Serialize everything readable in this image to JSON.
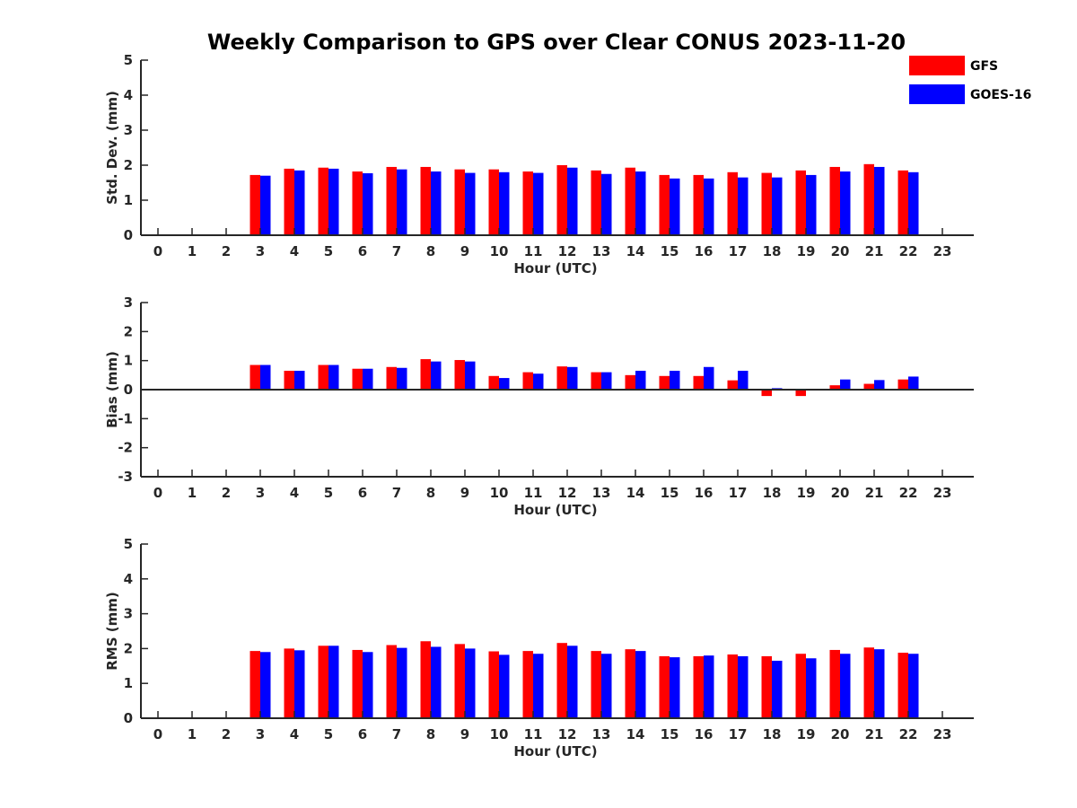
{
  "chart_data": {
    "type": "bar",
    "title": "Weekly Comparison to GPS over Clear CONUS 2023-11-20",
    "legend": {
      "placement": "top-right",
      "entries": [
        {
          "name": "GFS",
          "color": "#ff0000"
        },
        {
          "name": "GOES-16",
          "color": "#0000ff"
        }
      ]
    },
    "categories": [
      "0",
      "1",
      "2",
      "3",
      "4",
      "5",
      "6",
      "7",
      "8",
      "9",
      "10",
      "11",
      "12",
      "13",
      "14",
      "15",
      "16",
      "17",
      "18",
      "19",
      "20",
      "21",
      "22",
      "23"
    ],
    "subplots": [
      {
        "id": "stddev",
        "xlabel": "Hour (UTC)",
        "ylabel": "Std. Dev. (mm)",
        "ylim": [
          0,
          5
        ],
        "yticks": [
          "0",
          "1",
          "2",
          "3",
          "4",
          "5"
        ],
        "series": [
          {
            "name": "GFS",
            "color": "#ff0000",
            "values": [
              null,
              null,
              null,
              1.72,
              1.9,
              1.93,
              1.82,
              1.95,
              1.95,
              1.88,
              1.88,
              1.82,
              2.0,
              1.85,
              1.93,
              1.72,
              1.72,
              1.8,
              1.78,
              1.85,
              1.95,
              2.03,
              1.85,
              null
            ]
          },
          {
            "name": "GOES-16",
            "color": "#0000ff",
            "values": [
              null,
              null,
              null,
              1.7,
              1.85,
              1.9,
              1.77,
              1.88,
              1.82,
              1.78,
              1.8,
              1.78,
              1.93,
              1.75,
              1.82,
              1.62,
              1.62,
              1.65,
              1.65,
              1.72,
              1.82,
              1.95,
              1.8,
              null
            ]
          }
        ]
      },
      {
        "id": "bias",
        "xlabel": "Hour (UTC)",
        "ylabel": "Bias (mm)",
        "ylim": [
          -3,
          3
        ],
        "yticks": [
          "-3",
          "-2",
          "-1",
          "0",
          "1",
          "2",
          "3"
        ],
        "series": [
          {
            "name": "GFS",
            "color": "#ff0000",
            "values": [
              null,
              null,
              null,
              0.85,
              0.65,
              0.85,
              0.72,
              0.78,
              1.05,
              1.02,
              0.47,
              0.6,
              0.8,
              0.6,
              0.5,
              0.47,
              0.47,
              0.32,
              -0.22,
              -0.22,
              0.15,
              0.2,
              0.35,
              null
            ]
          },
          {
            "name": "GOES-16",
            "color": "#0000ff",
            "values": [
              null,
              null,
              null,
              0.85,
              0.65,
              0.85,
              0.72,
              0.75,
              0.97,
              0.97,
              0.4,
              0.55,
              0.78,
              0.6,
              0.65,
              0.65,
              0.78,
              0.65,
              0.05,
              null,
              0.35,
              0.33,
              0.45,
              null
            ]
          }
        ]
      },
      {
        "id": "rms",
        "xlabel": "Hour (UTC)",
        "ylabel": "RMS (mm)",
        "ylim": [
          0,
          5
        ],
        "yticks": [
          "0",
          "1",
          "2",
          "3",
          "4",
          "5"
        ],
        "series": [
          {
            "name": "GFS",
            "color": "#ff0000",
            "values": [
              null,
              null,
              null,
              1.93,
              2.0,
              2.08,
              1.96,
              2.1,
              2.21,
              2.13,
              1.92,
              1.93,
              2.16,
              1.93,
              1.98,
              1.78,
              1.78,
              1.83,
              1.78,
              1.85,
              1.96,
              2.03,
              1.88,
              null
            ]
          },
          {
            "name": "GOES-16",
            "color": "#0000ff",
            "values": [
              null,
              null,
              null,
              1.9,
              1.95,
              2.08,
              1.9,
              2.02,
              2.05,
              2.0,
              1.82,
              1.85,
              2.08,
              1.85,
              1.93,
              1.75,
              1.8,
              1.78,
              1.65,
              1.72,
              1.85,
              1.98,
              1.85,
              null
            ]
          }
        ]
      }
    ]
  }
}
